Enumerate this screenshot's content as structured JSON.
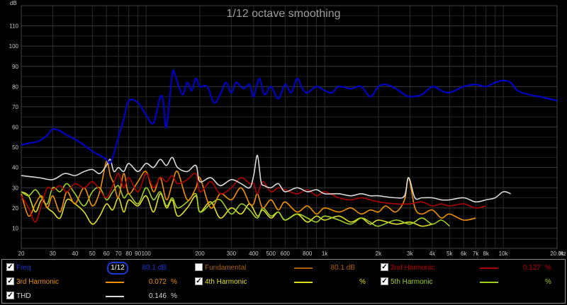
{
  "chart_data": {
    "type": "line",
    "title": "1/12 octave smoothing",
    "ylabel": "dB",
    "xlabel": "Hz",
    "x_scale": "log",
    "xlim": [
      20,
      20000
    ],
    "ylim": [
      0,
      120
    ],
    "yticks": [
      10,
      20,
      30,
      40,
      50,
      60,
      70,
      80,
      90,
      100,
      110
    ],
    "xticks": [
      {
        "v": 20,
        "l": "20"
      },
      {
        "v": 30,
        "l": "30"
      },
      {
        "v": 40,
        "l": "40"
      },
      {
        "v": 50,
        "l": "50"
      },
      {
        "v": 60,
        "l": "60"
      },
      {
        "v": 70,
        "l": "70"
      },
      {
        "v": 80,
        "l": "80"
      },
      {
        "v": 90,
        "l": "90"
      },
      {
        "v": 100,
        "l": "100"
      },
      {
        "v": 200,
        "l": "200"
      },
      {
        "v": 300,
        "l": "300"
      },
      {
        "v": 400,
        "l": "400"
      },
      {
        "v": 500,
        "l": "500"
      },
      {
        "v": 600,
        "l": "600"
      },
      {
        "v": 800,
        "l": "800"
      },
      {
        "v": 1000,
        "l": "1k"
      },
      {
        "v": 2000,
        "l": "2k"
      },
      {
        "v": 3000,
        "l": "3k"
      },
      {
        "v": 4000,
        "l": "4k"
      },
      {
        "v": 5000,
        "l": "5k"
      },
      {
        "v": 6000,
        "l": "6k"
      },
      {
        "v": 7000,
        "l": "7k"
      },
      {
        "v": 8000,
        "l": "8k"
      },
      {
        "v": 10000,
        "l": "10k"
      },
      {
        "v": 20000,
        "l": "20.0k"
      }
    ],
    "grid": true,
    "series": [
      {
        "name": "Fundamental",
        "color": "#0000c8",
        "width": 2.2,
        "x": [
          20,
          22,
          25,
          28,
          30,
          33,
          36,
          40,
          45,
          50,
          55,
          60,
          63,
          66,
          70,
          75,
          80,
          90,
          100,
          110,
          120,
          125,
          130,
          140,
          145,
          150,
          160,
          170,
          180,
          190,
          200,
          220,
          240,
          260,
          280,
          300,
          320,
          350,
          380,
          400,
          430,
          460,
          500,
          550,
          600,
          650,
          700,
          750,
          800,
          900,
          1000,
          1100,
          1200,
          1400,
          1600,
          1800,
          2000,
          2200,
          2500,
          2800,
          3000,
          3500,
          4000,
          4500,
          5000,
          6000,
          7000,
          8000,
          9000,
          10000,
          11000,
          12000,
          14000,
          16000,
          18000,
          20000
        ],
        "y": [
          51,
          52,
          53,
          56,
          59,
          58,
          56,
          54,
          51,
          48,
          46,
          44,
          42,
          47,
          55,
          64,
          73,
          72,
          66,
          62,
          75,
          72,
          60,
          86,
          86,
          82,
          76,
          82,
          78,
          84,
          80,
          80,
          72,
          76,
          82,
          77,
          82,
          79,
          81,
          75,
          84,
          76,
          80,
          74,
          81,
          77,
          84,
          79,
          77,
          80,
          78,
          77,
          80,
          79,
          80,
          75,
          80,
          81,
          79,
          76,
          75,
          76,
          80,
          78,
          77,
          80,
          81,
          80,
          82,
          83,
          82,
          78,
          76,
          75,
          74,
          73
        ]
      },
      {
        "name": "2nd Harmonic",
        "color": "#b00000",
        "width": 1.6,
        "x": [
          20,
          22,
          24,
          26,
          28,
          30,
          33,
          36,
          40,
          45,
          50,
          55,
          60,
          65,
          70,
          75,
          80,
          90,
          100,
          110,
          120,
          130,
          140,
          150,
          170,
          190,
          200,
          230,
          260,
          300,
          340,
          380,
          400,
          420,
          450,
          500,
          550,
          600,
          700,
          800,
          900,
          1000,
          1200,
          1400,
          1600,
          1800,
          2000,
          2500,
          3000,
          3500,
          4000,
          4500,
          5000,
          6000,
          7000,
          8000
        ],
        "y": [
          26,
          20,
          13,
          22,
          30,
          29,
          31,
          28,
          32,
          30,
          33,
          29,
          25,
          31,
          37,
          30,
          35,
          28,
          37,
          30,
          35,
          33,
          36,
          32,
          34,
          37,
          28,
          33,
          27,
          30,
          35,
          32,
          32,
          27,
          33,
          28,
          30,
          29,
          27,
          29,
          26,
          28,
          25,
          24,
          25,
          24,
          23,
          22,
          22,
          23,
          21,
          22,
          21,
          22,
          20,
          21
        ]
      },
      {
        "name": "3rd Harmonic",
        "color": "#f09000",
        "width": 1.6,
        "x": [
          20,
          22,
          24,
          26,
          28,
          30,
          33,
          36,
          40,
          45,
          50,
          55,
          60,
          63,
          66,
          70,
          75,
          80,
          90,
          100,
          110,
          120,
          130,
          140,
          150,
          170,
          190,
          200,
          230,
          260,
          300,
          340,
          380,
          400,
          420,
          450,
          500,
          550,
          600,
          700,
          800,
          900,
          1000,
          1200,
          1400,
          1600,
          1800,
          2000,
          2200,
          2500,
          2800,
          2950,
          3200,
          3500,
          4000,
          4500,
          5000,
          6000,
          7000
        ],
        "y": [
          27,
          16,
          22,
          26,
          20,
          26,
          18,
          28,
          22,
          30,
          21,
          28,
          43,
          36,
          32,
          25,
          37,
          27,
          33,
          38,
          28,
          35,
          24,
          32,
          38,
          24,
          30,
          35,
          20,
          27,
          24,
          30,
          22,
          22,
          27,
          20,
          24,
          19,
          23,
          18,
          21,
          17,
          20,
          18,
          20,
          17,
          19,
          18,
          21,
          18,
          24,
          35,
          20,
          17,
          19,
          15,
          17,
          14,
          15
        ]
      },
      {
        "name": "4th Harmonic",
        "color": "#e0e020",
        "width": 1.6,
        "x": [
          20,
          22,
          24,
          26,
          28,
          30,
          33,
          36,
          40,
          45,
          50,
          55,
          60,
          65,
          70,
          75,
          80,
          90,
          100,
          110,
          120,
          130,
          140,
          150,
          170,
          190,
          200,
          230,
          260,
          300,
          340,
          380,
          420,
          450,
          500,
          550,
          600,
          700,
          800,
          900,
          1000,
          1200,
          1400,
          1600,
          1800,
          2000,
          2500,
          3000,
          3500,
          4000
        ],
        "y": [
          28,
          26,
          18,
          24,
          20,
          18,
          15,
          24,
          22,
          18,
          12,
          16,
          22,
          19,
          25,
          18,
          24,
          21,
          26,
          18,
          27,
          20,
          24,
          16,
          20,
          26,
          18,
          23,
          15,
          20,
          17,
          22,
          16,
          19,
          15,
          18,
          14,
          17,
          13,
          16,
          14,
          16,
          13,
          15,
          12,
          14,
          12,
          13,
          11,
          12
        ]
      },
      {
        "name": "5th Harmonic",
        "color": "#a0d020",
        "width": 1.6,
        "x": [
          20,
          22,
          24,
          26,
          28,
          30,
          33,
          36,
          40,
          45,
          50,
          55,
          60,
          65,
          70,
          75,
          80,
          90,
          100,
          110,
          120,
          130,
          140,
          150,
          170,
          190,
          200,
          230,
          260,
          300,
          340,
          380,
          420,
          450,
          500,
          550,
          600,
          700,
          800,
          900,
          1000,
          1200,
          1400,
          1600,
          1800,
          2000,
          2500,
          3000,
          3500,
          4000,
          4500,
          5000
        ],
        "y": [
          28,
          26,
          29,
          25,
          22,
          30,
          28,
          32,
          27,
          21,
          28,
          30,
          24,
          28,
          31,
          25,
          27,
          22,
          30,
          24,
          28,
          21,
          25,
          20,
          23,
          27,
          18,
          22,
          24,
          17,
          22,
          19,
          15,
          20,
          16,
          18,
          14,
          17,
          15,
          13,
          16,
          14,
          12,
          15,
          13,
          11,
          14,
          12,
          15,
          12,
          14,
          11
        ]
      },
      {
        "name": "THD",
        "color": "#d8d8d8",
        "width": 1.6,
        "x": [
          20,
          25,
          30,
          35,
          40,
          45,
          50,
          55,
          60,
          63,
          66,
          70,
          75,
          80,
          90,
          100,
          110,
          120,
          130,
          140,
          150,
          170,
          190,
          200,
          230,
          260,
          300,
          340,
          380,
          400,
          420,
          440,
          460,
          500,
          550,
          600,
          700,
          800,
          900,
          1000,
          1200,
          1400,
          1600,
          1800,
          2000,
          2500,
          2800,
          2950,
          3200,
          3500,
          4000,
          4500,
          5000,
          6000,
          7000,
          8000,
          9000,
          10000,
          11000
        ],
        "y": [
          36,
          35,
          34,
          37,
          36,
          38,
          39,
          37,
          41,
          44,
          38,
          40,
          38,
          42,
          38,
          42,
          40,
          44,
          41,
          45,
          40,
          38,
          41,
          33,
          35,
          31,
          34,
          32,
          30,
          36,
          46,
          33,
          31,
          30,
          32,
          28,
          30,
          28,
          29,
          27,
          27,
          26,
          27,
          26,
          26,
          25,
          26,
          35,
          25,
          25,
          25,
          24,
          24,
          25,
          23,
          24,
          25,
          28,
          27
        ]
      }
    ]
  },
  "legend": {
    "rows": [
      [
        {
          "label": "Freq",
          "value": "80.1 dB",
          "unit": "",
          "color": "#1a37d8",
          "text_color": "#1a37d8",
          "checked": true,
          "smoothing": "1/12"
        },
        {
          "label": "Fundamental",
          "value": "80.1 dB",
          "unit": "",
          "color": "#b06000",
          "text_color": "#b06000",
          "checked": false
        },
        {
          "label": "2nd Harmonic",
          "value": "0.127",
          "unit": "%",
          "color": "#b00000",
          "text_color": "#c00000",
          "checked": true
        }
      ],
      [
        {
          "label": "3rd Harmonic",
          "value": "0.072",
          "unit": "%",
          "color": "#f09000",
          "text_color": "#f09000",
          "checked": true
        },
        {
          "label": "4th Harmonic",
          "value": "",
          "unit": "%",
          "color": "#e0e020",
          "text_color": "#e0e020",
          "checked": true
        },
        {
          "label": "5th Harmonic",
          "value": "",
          "unit": "%",
          "color": "#a0d020",
          "text_color": "#a0d020",
          "checked": true
        }
      ],
      [
        {
          "label": "THD",
          "value": "0.146",
          "unit": "%",
          "color": "#d8d8d8",
          "text_color": "#d8d8d8",
          "checked": true
        }
      ]
    ],
    "check_glyph": "✓"
  }
}
